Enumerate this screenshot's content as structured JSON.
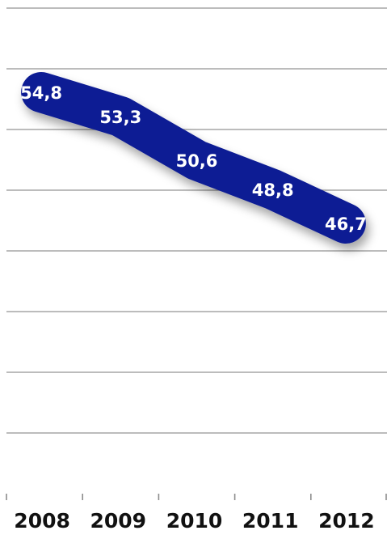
{
  "chart_data": {
    "type": "line",
    "categories": [
      "2008",
      "2009",
      "2010",
      "2011",
      "2012"
    ],
    "series": [
      {
        "values": [
          54.8,
          53.3,
          50.6,
          48.8,
          46.7
        ],
        "labels": [
          "54,8",
          "53,3",
          "50,6",
          "48,8",
          "46,7"
        ]
      }
    ],
    "title": "",
    "xlabel": "",
    "ylabel": "",
    "ylim": [
      30,
      60
    ],
    "y_axis_labels": "hidden",
    "grid": true,
    "legend": "none",
    "colors": {
      "series": "#0d1d94",
      "grid": "#a6a6a6",
      "label": "#ffffff"
    }
  }
}
